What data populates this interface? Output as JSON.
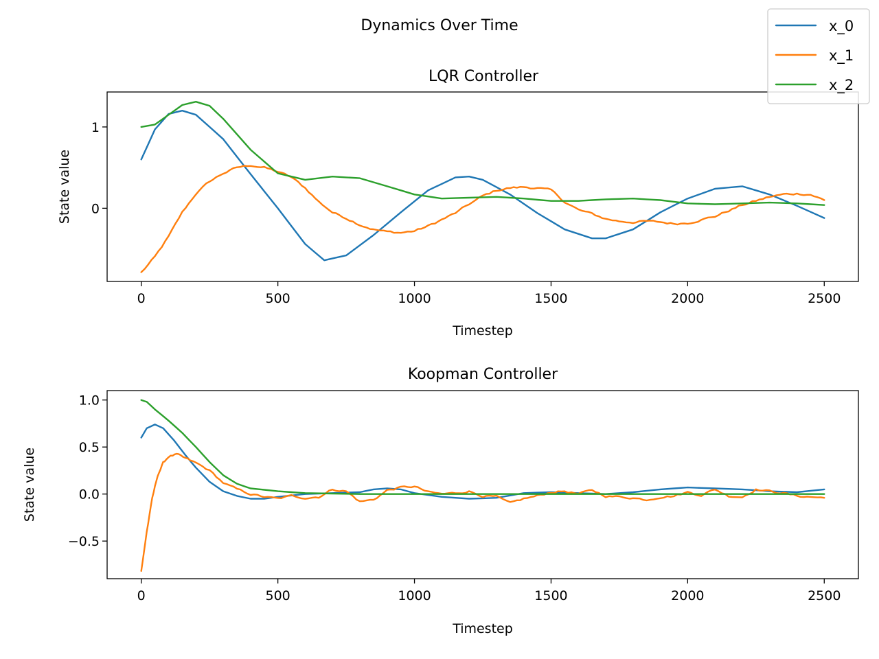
{
  "chart_data": {
    "suptitle": "Dynamics Over Time",
    "legend": {
      "placement": "top-right",
      "entries": [
        {
          "name": "x_0",
          "color": "#1f77b4"
        },
        {
          "name": "x_1",
          "color": "#ff7f0e"
        },
        {
          "name": "x_2",
          "color": "#2ca02c"
        }
      ]
    },
    "subplots": [
      {
        "type": "line",
        "title": "LQR Controller",
        "xlabel": "Timestep",
        "ylabel": "State value",
        "xlim": [
          -125,
          2625
        ],
        "ylim": [
          -0.9,
          1.43
        ],
        "xticks": [
          0,
          500,
          1000,
          1500,
          2000,
          2500
        ],
        "yticks": [
          0,
          1
        ],
        "ytick_labels": [
          "0",
          "1"
        ],
        "grid": false,
        "series": [
          {
            "name": "x_0",
            "color": "#1f77b4",
            "noise": 0,
            "x": [
              0,
              50,
              100,
              150,
              200,
              300,
              400,
              500,
              600,
              670,
              750,
              850,
              950,
              1050,
              1150,
              1200,
              1250,
              1350,
              1450,
              1550,
              1650,
              1700,
              1800,
              1900,
              2000,
              2100,
              2200,
              2300,
              2400,
              2500
            ],
            "y": [
              0.6,
              0.97,
              1.16,
              1.2,
              1.15,
              0.85,
              0.42,
              0.0,
              -0.44,
              -0.64,
              -0.58,
              -0.33,
              -0.05,
              0.22,
              0.38,
              0.39,
              0.35,
              0.17,
              -0.06,
              -0.26,
              -0.37,
              -0.37,
              -0.26,
              -0.05,
              0.12,
              0.24,
              0.27,
              0.17,
              0.03,
              -0.12
            ]
          },
          {
            "name": "x_1",
            "color": "#ff7f0e",
            "noise": 0.012,
            "x": [
              0,
              50,
              100,
              150,
              200,
              250,
              300,
              350,
              400,
              450,
              500,
              550,
              600,
              650,
              700,
              750,
              800,
              850,
              900,
              950,
              1000,
              1050,
              1100,
              1150,
              1200,
              1250,
              1300,
              1350,
              1400,
              1450,
              1500,
              1550,
              1600,
              1650,
              1700,
              1750,
              1800,
              1850,
              1900,
              1950,
              2000,
              2050,
              2100,
              2150,
              2200,
              2250,
              2300,
              2350,
              2400,
              2450,
              2500
            ],
            "y": [
              -0.79,
              -0.6,
              -0.35,
              -0.05,
              0.18,
              0.33,
              0.43,
              0.5,
              0.53,
              0.5,
              0.45,
              0.38,
              0.25,
              0.08,
              -0.05,
              -0.12,
              -0.2,
              -0.26,
              -0.29,
              -0.3,
              -0.28,
              -0.22,
              -0.14,
              -0.06,
              0.05,
              0.15,
              0.22,
              0.25,
              0.26,
              0.25,
              0.22,
              0.08,
              -0.02,
              -0.07,
              -0.13,
              -0.16,
              -0.17,
              -0.16,
              -0.17,
              -0.19,
              -0.18,
              -0.14,
              -0.1,
              -0.03,
              0.04,
              0.09,
              0.14,
              0.17,
              0.18,
              0.17,
              0.1
            ]
          },
          {
            "name": "x_2",
            "color": "#2ca02c",
            "noise": 0,
            "x": [
              0,
              50,
              100,
              150,
              200,
              250,
              300,
              400,
              500,
              600,
              700,
              800,
              900,
              1000,
              1100,
              1200,
              1300,
              1400,
              1500,
              1600,
              1700,
              1800,
              1900,
              2000,
              2100,
              2200,
              2300,
              2400,
              2500
            ],
            "y": [
              1.0,
              1.03,
              1.15,
              1.27,
              1.31,
              1.26,
              1.1,
              0.72,
              0.43,
              0.35,
              0.39,
              0.37,
              0.27,
              0.17,
              0.12,
              0.13,
              0.14,
              0.12,
              0.09,
              0.09,
              0.11,
              0.12,
              0.1,
              0.06,
              0.05,
              0.06,
              0.07,
              0.06,
              0.04
            ]
          }
        ]
      },
      {
        "type": "line",
        "title": "Koopman Controller",
        "xlabel": "Timestep",
        "ylabel": "State value",
        "xlim": [
          -125,
          2625
        ],
        "ylim": [
          -0.9,
          1.1
        ],
        "xticks": [
          0,
          500,
          1000,
          1500,
          2000,
          2500
        ],
        "yticks": [
          1.0,
          0.5,
          0.0,
          -0.5
        ],
        "ytick_labels": [
          "1.0",
          "0.5",
          "0.0",
          "−0.5"
        ],
        "grid": false,
        "series": [
          {
            "name": "x_0",
            "color": "#1f77b4",
            "noise": 0,
            "x": [
              0,
              20,
              50,
              80,
              120,
              160,
              200,
              250,
              300,
              350,
              400,
              450,
              500,
              600,
              700,
              800,
              850,
              900,
              950,
              1000,
              1100,
              1200,
              1300,
              1400,
              1500,
              1600,
              1700,
              1800,
              1900,
              2000,
              2100,
              2200,
              2300,
              2400,
              2500
            ],
            "y": [
              0.6,
              0.7,
              0.74,
              0.7,
              0.57,
              0.42,
              0.28,
              0.13,
              0.03,
              -0.02,
              -0.05,
              -0.05,
              -0.03,
              0.0,
              0.01,
              0.02,
              0.05,
              0.06,
              0.05,
              0.01,
              -0.03,
              -0.05,
              -0.04,
              0.01,
              0.02,
              0.01,
              0.0,
              0.02,
              0.05,
              0.07,
              0.06,
              0.05,
              0.03,
              0.02,
              0.05
            ]
          },
          {
            "name": "x_1",
            "color": "#ff7f0e",
            "noise": 0.01,
            "x": [
              0,
              20,
              40,
              60,
              80,
              100,
              130,
              160,
              200,
              250,
              300,
              350,
              400,
              450,
              500,
              550,
              600,
              650,
              700,
              750,
              800,
              850,
              900,
              950,
              1000,
              1050,
              1100,
              1150,
              1200,
              1250,
              1300,
              1350,
              1400,
              1450,
              1500,
              1550,
              1600,
              1650,
              1700,
              1750,
              1800,
              1850,
              1900,
              1950,
              2000,
              2050,
              2100,
              2150,
              2200,
              2250,
              2300,
              2350,
              2400,
              2450,
              2500
            ],
            "y": [
              -0.82,
              -0.4,
              -0.05,
              0.2,
              0.33,
              0.4,
              0.42,
              0.38,
              0.33,
              0.25,
              0.12,
              0.05,
              0.0,
              -0.03,
              -0.05,
              -0.02,
              -0.04,
              -0.03,
              0.05,
              0.03,
              -0.08,
              -0.06,
              0.04,
              0.07,
              0.08,
              0.02,
              0.0,
              0.01,
              0.03,
              -0.02,
              -0.03,
              -0.1,
              -0.05,
              -0.02,
              0.02,
              0.03,
              0.0,
              0.04,
              -0.02,
              -0.03,
              -0.04,
              -0.06,
              -0.03,
              -0.02,
              0.02,
              -0.01,
              0.05,
              -0.02,
              -0.03,
              0.05,
              0.03,
              0.01,
              -0.02,
              -0.03,
              -0.04
            ]
          },
          {
            "name": "x_2",
            "color": "#2ca02c",
            "noise": 0,
            "x": [
              0,
              20,
              50,
              100,
              150,
              200,
              250,
              300,
              350,
              400,
              500,
              600,
              800,
              1000,
              1500,
              2000,
              2500
            ],
            "y": [
              1.0,
              0.98,
              0.9,
              0.78,
              0.65,
              0.5,
              0.34,
              0.2,
              0.11,
              0.06,
              0.03,
              0.01,
              0.0,
              0.0,
              0.0,
              0.0,
              0.0
            ]
          }
        ]
      }
    ]
  }
}
